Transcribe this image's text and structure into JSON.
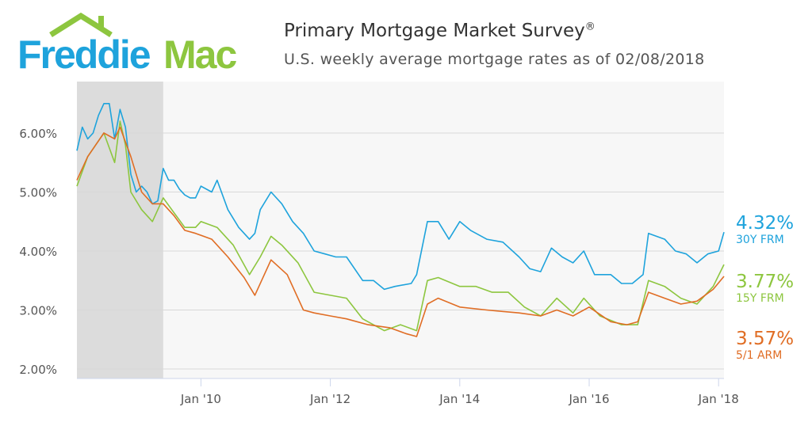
{
  "logo": {
    "text_part1": "Freddie",
    "text_part2": "Mac",
    "colors": {
      "freddie": "#1ea3dc",
      "mac": "#8dc63f"
    }
  },
  "header": {
    "title": "Primary Mortgage Market Survey",
    "title_mark": "®",
    "subtitle": "U.S. weekly average mortgage rates as of 02/08/2018"
  },
  "chart_data": {
    "type": "line",
    "title": "Primary Mortgage Market Survey®",
    "subtitle": "U.S. weekly average mortgage rates as of 02/08/2018",
    "xlim": [
      "2008-02",
      "2018-02"
    ],
    "ylim": [
      2,
      6.5
    ],
    "yticks": [
      {
        "v": 2,
        "label": "2.00%"
      },
      {
        "v": 3,
        "label": "3.00%"
      },
      {
        "v": 4,
        "label": "4.00%"
      },
      {
        "v": 5,
        "label": "5.00%"
      },
      {
        "v": 6,
        "label": "6.00%"
      }
    ],
    "xticks": [
      {
        "v": "2010-01",
        "label": "Jan '10"
      },
      {
        "v": "2012-01",
        "label": "Jan '12"
      },
      {
        "v": "2014-01",
        "label": "Jan '14"
      },
      {
        "v": "2016-01",
        "label": "Jan '16"
      },
      {
        "v": "2018-01",
        "label": "Jan '18"
      }
    ],
    "grid": true,
    "shaded_period": [
      "2008-02",
      "2009-06"
    ],
    "legend": "right",
    "series": [
      {
        "name": "30Y FRM",
        "latest": "4.32%",
        "color": "#1ea3dc",
        "points": [
          [
            "2008-02",
            5.7
          ],
          [
            "2008-03",
            6.1
          ],
          [
            "2008-04",
            5.9
          ],
          [
            "2008-05",
            6.0
          ],
          [
            "2008-06",
            6.3
          ],
          [
            "2008-07",
            6.5
          ],
          [
            "2008-08",
            6.5
          ],
          [
            "2008-09",
            5.9
          ],
          [
            "2008-10",
            6.4
          ],
          [
            "2008-11",
            6.1
          ],
          [
            "2008-12",
            5.3
          ],
          [
            "2009-01",
            5.0
          ],
          [
            "2009-02",
            5.1
          ],
          [
            "2009-03",
            5.0
          ],
          [
            "2009-04",
            4.8
          ],
          [
            "2009-05",
            4.85
          ],
          [
            "2009-06",
            5.4
          ],
          [
            "2009-07",
            5.2
          ],
          [
            "2009-08",
            5.2
          ],
          [
            "2009-09",
            5.05
          ],
          [
            "2009-10",
            4.95
          ],
          [
            "2009-11",
            4.9
          ],
          [
            "2009-12",
            4.9
          ],
          [
            "2010-01",
            5.1
          ],
          [
            "2010-03",
            5.0
          ],
          [
            "2010-04",
            5.2
          ],
          [
            "2010-06",
            4.7
          ],
          [
            "2010-08",
            4.4
          ],
          [
            "2010-10",
            4.2
          ],
          [
            "2010-11",
            4.3
          ],
          [
            "2010-12",
            4.7
          ],
          [
            "2011-02",
            5.0
          ],
          [
            "2011-04",
            4.8
          ],
          [
            "2011-06",
            4.5
          ],
          [
            "2011-08",
            4.3
          ],
          [
            "2011-10",
            4.0
          ],
          [
            "2011-12",
            3.95
          ],
          [
            "2012-02",
            3.9
          ],
          [
            "2012-04",
            3.9
          ],
          [
            "2012-07",
            3.5
          ],
          [
            "2012-09",
            3.5
          ],
          [
            "2012-11",
            3.35
          ],
          [
            "2013-01",
            3.4
          ],
          [
            "2013-04",
            3.45
          ],
          [
            "2013-05",
            3.6
          ],
          [
            "2013-07",
            4.5
          ],
          [
            "2013-09",
            4.5
          ],
          [
            "2013-11",
            4.2
          ],
          [
            "2014-01",
            4.5
          ],
          [
            "2014-03",
            4.35
          ],
          [
            "2014-06",
            4.2
          ],
          [
            "2014-09",
            4.15
          ],
          [
            "2014-12",
            3.9
          ],
          [
            "2015-02",
            3.7
          ],
          [
            "2015-04",
            3.65
          ],
          [
            "2015-06",
            4.05
          ],
          [
            "2015-08",
            3.9
          ],
          [
            "2015-10",
            3.8
          ],
          [
            "2015-12",
            4.0
          ],
          [
            "2016-02",
            3.6
          ],
          [
            "2016-05",
            3.6
          ],
          [
            "2016-07",
            3.45
          ],
          [
            "2016-09",
            3.45
          ],
          [
            "2016-11",
            3.6
          ],
          [
            "2016-12",
            4.3
          ],
          [
            "2017-03",
            4.2
          ],
          [
            "2017-05",
            4.0
          ],
          [
            "2017-07",
            3.95
          ],
          [
            "2017-09",
            3.8
          ],
          [
            "2017-11",
            3.95
          ],
          [
            "2018-01",
            4.0
          ],
          [
            "2018-02",
            4.32
          ]
        ]
      },
      {
        "name": "15Y FRM",
        "latest": "3.77%",
        "color": "#8dc63f",
        "points": [
          [
            "2008-02",
            5.1
          ],
          [
            "2008-04",
            5.6
          ],
          [
            "2008-07",
            6.0
          ],
          [
            "2008-09",
            5.5
          ],
          [
            "2008-10",
            6.2
          ],
          [
            "2008-11",
            5.8
          ],
          [
            "2008-12",
            5.0
          ],
          [
            "2009-02",
            4.7
          ],
          [
            "2009-04",
            4.5
          ],
          [
            "2009-06",
            4.9
          ],
          [
            "2009-08",
            4.65
          ],
          [
            "2009-10",
            4.4
          ],
          [
            "2009-12",
            4.4
          ],
          [
            "2010-01",
            4.5
          ],
          [
            "2010-04",
            4.4
          ],
          [
            "2010-07",
            4.1
          ],
          [
            "2010-10",
            3.6
          ],
          [
            "2010-12",
            3.9
          ],
          [
            "2011-02",
            4.25
          ],
          [
            "2011-04",
            4.1
          ],
          [
            "2011-07",
            3.8
          ],
          [
            "2011-10",
            3.3
          ],
          [
            "2012-01",
            3.25
          ],
          [
            "2012-04",
            3.2
          ],
          [
            "2012-07",
            2.85
          ],
          [
            "2012-11",
            2.65
          ],
          [
            "2013-02",
            2.75
          ],
          [
            "2013-05",
            2.65
          ],
          [
            "2013-07",
            3.5
          ],
          [
            "2013-09",
            3.55
          ],
          [
            "2014-01",
            3.4
          ],
          [
            "2014-04",
            3.4
          ],
          [
            "2014-07",
            3.3
          ],
          [
            "2014-10",
            3.3
          ],
          [
            "2015-01",
            3.05
          ],
          [
            "2015-04",
            2.9
          ],
          [
            "2015-07",
            3.2
          ],
          [
            "2015-10",
            2.95
          ],
          [
            "2015-12",
            3.2
          ],
          [
            "2016-03",
            2.9
          ],
          [
            "2016-07",
            2.75
          ],
          [
            "2016-10",
            2.75
          ],
          [
            "2016-12",
            3.5
          ],
          [
            "2017-03",
            3.4
          ],
          [
            "2017-06",
            3.2
          ],
          [
            "2017-09",
            3.1
          ],
          [
            "2017-12",
            3.4
          ],
          [
            "2018-02",
            3.77
          ]
        ]
      },
      {
        "name": "5/1 ARM",
        "latest": "3.57%",
        "color": "#e06d24",
        "points": [
          [
            "2008-02",
            5.2
          ],
          [
            "2008-04",
            5.6
          ],
          [
            "2008-07",
            6.0
          ],
          [
            "2008-09",
            5.9
          ],
          [
            "2008-10",
            6.1
          ],
          [
            "2008-12",
            5.6
          ],
          [
            "2009-02",
            5.0
          ],
          [
            "2009-04",
            4.8
          ],
          [
            "2009-06",
            4.8
          ],
          [
            "2009-08",
            4.6
          ],
          [
            "2009-10",
            4.35
          ],
          [
            "2009-12",
            4.3
          ],
          [
            "2010-03",
            4.2
          ],
          [
            "2010-06",
            3.9
          ],
          [
            "2010-09",
            3.55
          ],
          [
            "2010-11",
            3.25
          ],
          [
            "2011-02",
            3.85
          ],
          [
            "2011-05",
            3.6
          ],
          [
            "2011-08",
            3.0
          ],
          [
            "2011-10",
            2.95
          ],
          [
            "2012-01",
            2.9
          ],
          [
            "2012-04",
            2.85
          ],
          [
            "2012-08",
            2.75
          ],
          [
            "2012-12",
            2.7
          ],
          [
            "2013-03",
            2.6
          ],
          [
            "2013-05",
            2.55
          ],
          [
            "2013-07",
            3.1
          ],
          [
            "2013-09",
            3.2
          ],
          [
            "2014-01",
            3.05
          ],
          [
            "2014-06",
            3.0
          ],
          [
            "2014-12",
            2.95
          ],
          [
            "2015-04",
            2.9
          ],
          [
            "2015-07",
            3.0
          ],
          [
            "2015-10",
            2.9
          ],
          [
            "2016-01",
            3.05
          ],
          [
            "2016-05",
            2.8
          ],
          [
            "2016-08",
            2.75
          ],
          [
            "2016-10",
            2.8
          ],
          [
            "2016-12",
            3.3
          ],
          [
            "2017-03",
            3.2
          ],
          [
            "2017-06",
            3.1
          ],
          [
            "2017-09",
            3.15
          ],
          [
            "2017-12",
            3.35
          ],
          [
            "2018-02",
            3.57
          ]
        ]
      }
    ]
  }
}
